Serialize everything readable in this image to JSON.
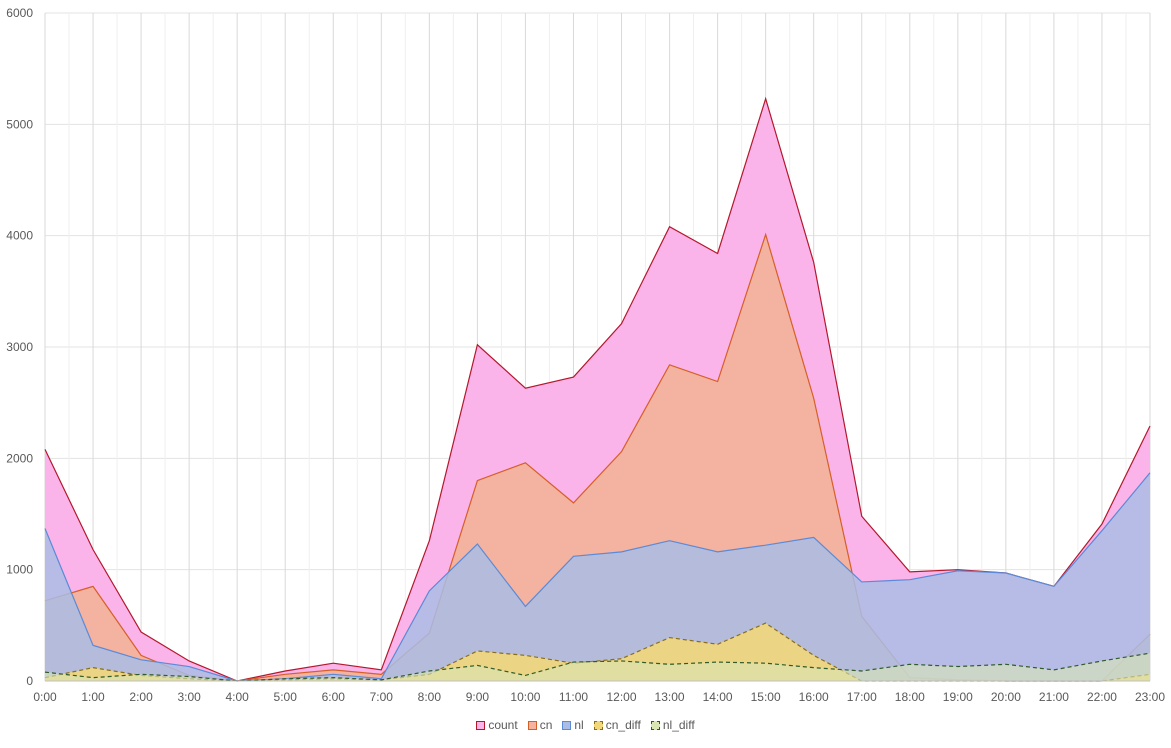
{
  "chart_data": {
    "type": "area",
    "categories": [
      "0:00",
      "1:00",
      "2:00",
      "3:00",
      "4:00",
      "5:00",
      "6:00",
      "7:00",
      "8:00",
      "9:00",
      "10:00",
      "11:00",
      "12:00",
      "13:00",
      "14:00",
      "15:00",
      "16:00",
      "17:00",
      "18:00",
      "19:00",
      "20:00",
      "21:00",
      "22:00",
      "23:00"
    ],
    "ylim": [
      0,
      6000
    ],
    "yticks": [
      0,
      1000,
      2000,
      3000,
      4000,
      5000,
      6000
    ],
    "grid": true,
    "legend_position": "bottom",
    "series": [
      {
        "name": "count",
        "fill": "#fbb4ea",
        "stroke": "#b5172d",
        "dashed": false,
        "values": [
          2080,
          1180,
          440,
          180,
          0,
          90,
          160,
          100,
          1260,
          3020,
          2630,
          2730,
          3210,
          4080,
          3840,
          5230,
          3760,
          1480,
          980,
          1000,
          970,
          850,
          1410,
          2290
        ]
      },
      {
        "name": "cn",
        "fill": "#f4b2a0",
        "stroke": "#d65f27",
        "dashed": false,
        "values": [
          720,
          850,
          230,
          50,
          0,
          60,
          100,
          60,
          430,
          1800,
          1960,
          1600,
          2060,
          2840,
          2690,
          4010,
          2540,
          580,
          30,
          10,
          0,
          0,
          0,
          420
        ]
      },
      {
        "name": "nl",
        "fill": "#a9bde5",
        "stroke": "#5b8ad6",
        "dashed": false,
        "fill_opacity": 0.85,
        "values": [
          1370,
          320,
          190,
          130,
          0,
          20,
          60,
          20,
          810,
          1230,
          670,
          1120,
          1160,
          1260,
          1160,
          1220,
          1290,
          890,
          910,
          990,
          970,
          850,
          1350,
          1870
        ]
      },
      {
        "name": "cn_diff",
        "fill": "#f1d67a",
        "stroke": "#8a6d1c",
        "dashed": true,
        "fill_opacity": 0.9,
        "values": [
          30,
          120,
          50,
          20,
          0,
          10,
          20,
          10,
          60,
          270,
          230,
          160,
          200,
          390,
          330,
          520,
          230,
          0,
          0,
          0,
          0,
          0,
          0,
          60
        ]
      },
      {
        "name": "nl_diff",
        "fill": "#d8e6b4",
        "stroke": "#2f5a2a",
        "dashed": true,
        "fill_opacity": 0.6,
        "values": [
          80,
          30,
          60,
          40,
          0,
          20,
          30,
          10,
          90,
          140,
          50,
          170,
          180,
          150,
          170,
          160,
          120,
          90,
          150,
          130,
          150,
          100,
          180,
          250
        ]
      }
    ]
  }
}
